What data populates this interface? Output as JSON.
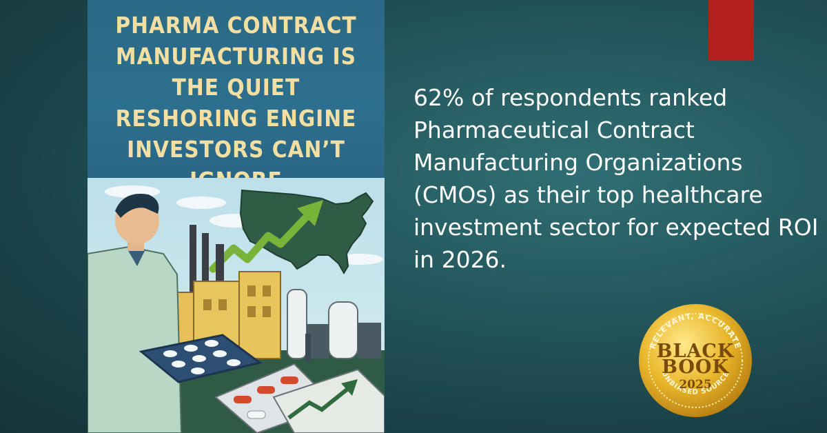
{
  "poster": {
    "title_lines": [
      "PHARMA CONTRACT",
      "MANUFACTURING IS",
      "THE QUIET",
      "RESHORING ENGINE",
      "INVESTORS CAN’T IGNORE"
    ],
    "illustration_icons": [
      "scientist-icon",
      "usa-map-icon",
      "growth-arrow-icon",
      "factory-icon",
      "pill-tray-icon",
      "blister-pack-icon"
    ]
  },
  "stat": {
    "text": "62% of respondents ranked Pharmaceutical Contract Manufacturing Organizations (CMOs) as their top healthcare investment sector for expected ROI in 2026."
  },
  "badge": {
    "arc_top": "RELEVANT, ACCURATE",
    "brand_line1": "BLACK",
    "brand_line2": "BOOK",
    "year": "2025",
    "arc_bottom": "UNBIASED SOURCE"
  },
  "colors": {
    "background": "#24585e",
    "poster_header": "#2d6f8e",
    "poster_title": "#f3dfa2",
    "accent_red": "#b22020",
    "badge_gold": "#e8b62a"
  }
}
